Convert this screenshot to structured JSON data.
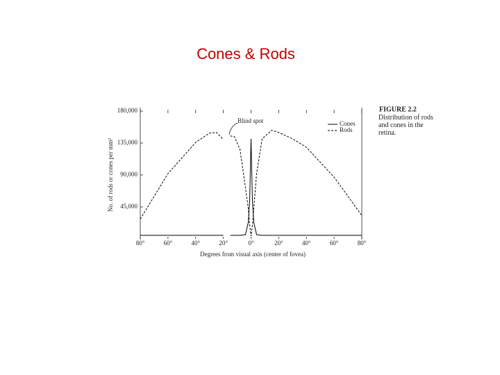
{
  "chart_data": {
    "type": "line",
    "title": "Cones & Rods",
    "figure_label": "FIGURE 2.2",
    "caption": "Distribution of rods and cones in the retina.",
    "annotation": "Blind spot",
    "xlabel": "Degrees from visual axis (center of fovea)",
    "ylabel": "No. of rods or cones per mm²",
    "x": [
      -80,
      -60,
      -40,
      -30,
      -25,
      -20,
      -18,
      -15,
      -12,
      -8,
      -4,
      -2,
      -1,
      0,
      1,
      2,
      4,
      8,
      15,
      20,
      30,
      40,
      60,
      80
    ],
    "series": [
      {
        "name": "Cones",
        "color": "#000000",
        "dashed": false,
        "values": [
          5000,
          5000,
          5000,
          5000,
          5000,
          5000,
          null,
          5000,
          5000,
          5000,
          6000,
          23000,
          53000,
          141000,
          53000,
          23000,
          6000,
          5000,
          5000,
          5000,
          5000,
          5000,
          5000,
          5000
        ]
      },
      {
        "name": "Rods",
        "color": "#000000",
        "dashed": true,
        "values": [
          28000,
          92000,
          136000,
          149000,
          150000,
          140000,
          null,
          145000,
          144000,
          126000,
          72000,
          43000,
          20000,
          4000,
          20000,
          43000,
          92000,
          141000,
          153000,
          150000,
          141000,
          129000,
          87000,
          33000
        ]
      }
    ],
    "xlim": [
      -80,
      80
    ],
    "ylim": [
      0,
      180000
    ],
    "xticks": [
      {
        "value": -80,
        "label": "80°"
      },
      {
        "value": -60,
        "label": "60°"
      },
      {
        "value": -40,
        "label": "40°"
      },
      {
        "value": -20,
        "label": "20°"
      },
      {
        "value": 0,
        "label": "0°"
      },
      {
        "value": 20,
        "label": "20°"
      },
      {
        "value": 40,
        "label": "40°"
      },
      {
        "value": 60,
        "label": "60°"
      },
      {
        "value": 80,
        "label": "80°"
      }
    ],
    "yticks": [
      {
        "value": 45000,
        "label": "45,000"
      },
      {
        "value": 90000,
        "label": "90,000"
      },
      {
        "value": 135000,
        "label": "135,000"
      },
      {
        "value": 180000,
        "label": "180,000"
      }
    ],
    "legend": "upper-right"
  }
}
